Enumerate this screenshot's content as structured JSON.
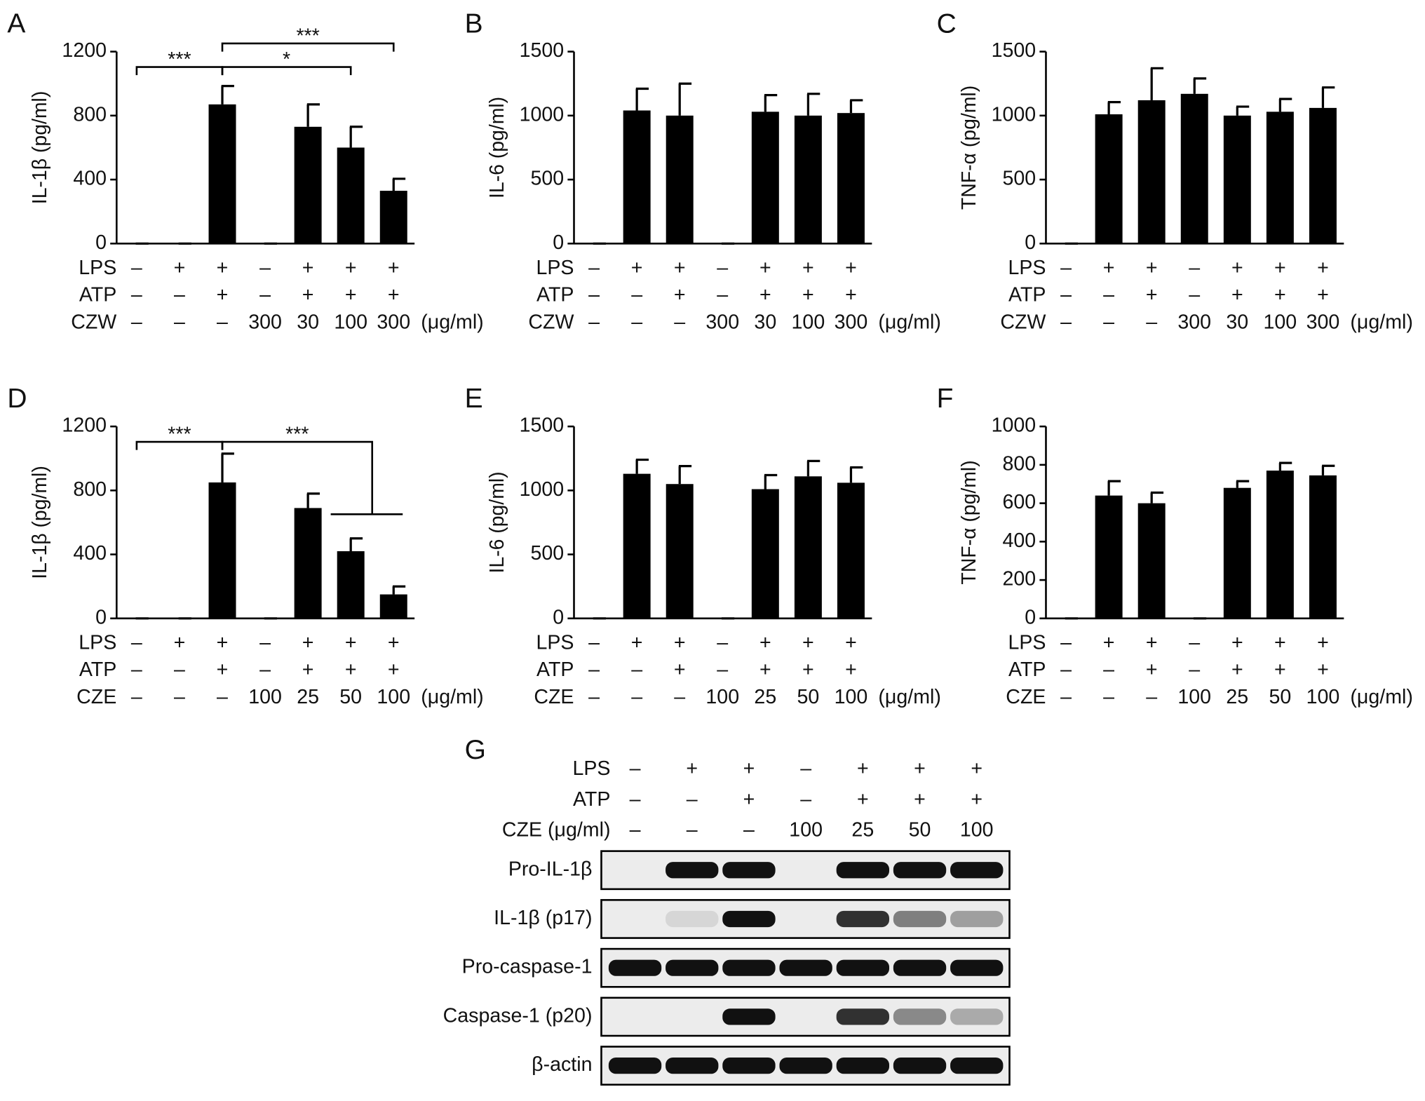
{
  "chart_data": [
    {
      "type": "bar",
      "panel": "A",
      "ylabel": "IL-1β (pg/ml)",
      "color": "#000000",
      "values": [
        0,
        0,
        870,
        0,
        730,
        600,
        330
      ],
      "errors": [
        0,
        0,
        115,
        0,
        140,
        130,
        75
      ],
      "ylim": [
        0,
        1200
      ],
      "yticks": [
        0,
        400,
        800,
        1200
      ],
      "treatments": [
        {
          "name": "LPS",
          "labels": [
            "–",
            "+",
            "+",
            "–",
            "+",
            "+",
            "+"
          ]
        },
        {
          "name": "ATP",
          "labels": [
            "–",
            "–",
            "+",
            "–",
            "+",
            "+",
            "+"
          ]
        },
        {
          "name": "CZW",
          "labels": [
            "–",
            "–",
            "–",
            "300",
            "30",
            "100",
            "300"
          ]
        }
      ],
      "unit": "(μg/ml)",
      "annotations": [
        {
          "text": "***",
          "between": [
            0,
            2
          ]
        },
        {
          "text": "*",
          "between": [
            2,
            5
          ]
        },
        {
          "text": "***",
          "between": [
            2,
            6
          ]
        }
      ]
    },
    {
      "type": "bar",
      "panel": "B",
      "ylabel": "IL-6 (pg/ml)",
      "color": "#000000",
      "values": [
        0,
        1040,
        1000,
        0,
        1030,
        1000,
        1020
      ],
      "errors": [
        0,
        170,
        250,
        0,
        130,
        170,
        100
      ],
      "ylim": [
        0,
        1500
      ],
      "yticks": [
        0,
        500,
        1000,
        1500
      ],
      "treatments": [
        {
          "name": "LPS",
          "labels": [
            "–",
            "+",
            "+",
            "–",
            "+",
            "+",
            "+"
          ]
        },
        {
          "name": "ATP",
          "labels": [
            "–",
            "–",
            "+",
            "–",
            "+",
            "+",
            "+"
          ]
        },
        {
          "name": "CZW",
          "labels": [
            "–",
            "–",
            "–",
            "300",
            "30",
            "100",
            "300"
          ]
        }
      ],
      "unit": "(μg/ml)",
      "annotations": []
    },
    {
      "type": "bar",
      "panel": "C",
      "ylabel": "TNF-α (pg/ml)",
      "color": "#000000",
      "values": [
        0,
        1010,
        1120,
        1170,
        1000,
        1030,
        1060
      ],
      "errors": [
        0,
        95,
        250,
        120,
        70,
        100,
        160
      ],
      "ylim": [
        0,
        1500
      ],
      "yticks": [
        0,
        500,
        1000,
        1500
      ],
      "treatments": [
        {
          "name": "LPS",
          "labels": [
            "–",
            "+",
            "+",
            "–",
            "+",
            "+",
            "+"
          ]
        },
        {
          "name": "ATP",
          "labels": [
            "–",
            "–",
            "+",
            "–",
            "+",
            "+",
            "+"
          ]
        },
        {
          "name": "CZW",
          "labels": [
            "–",
            "–",
            "–",
            "300",
            "30",
            "100",
            "300"
          ]
        }
      ],
      "unit": "(μg/ml)",
      "annotations": []
    },
    {
      "type": "bar",
      "panel": "D",
      "ylabel": "IL-1β (pg/ml)",
      "color": "#000000",
      "values": [
        0,
        0,
        850,
        0,
        690,
        420,
        150
      ],
      "errors": [
        0,
        0,
        180,
        0,
        90,
        80,
        50
      ],
      "ylim": [
        0,
        1200
      ],
      "yticks": [
        0,
        400,
        800,
        1200
      ],
      "treatments": [
        {
          "name": "LPS",
          "labels": [
            "–",
            "+",
            "+",
            "–",
            "+",
            "+",
            "+"
          ]
        },
        {
          "name": "ATP",
          "labels": [
            "–",
            "–",
            "+",
            "–",
            "+",
            "+",
            "+"
          ]
        },
        {
          "name": "CZE",
          "labels": [
            "–",
            "–",
            "–",
            "100",
            "25",
            "50",
            "100"
          ]
        }
      ],
      "unit": "(μg/ml)",
      "annotations": [
        {
          "text": "***",
          "between": [
            0,
            2
          ]
        },
        {
          "text": "***",
          "between": [
            2,
            [
              5,
              6
            ]
          ]
        }
      ]
    },
    {
      "type": "bar",
      "panel": "E",
      "ylabel": "IL-6 (pg/ml)",
      "color": "#000000",
      "values": [
        0,
        1130,
        1050,
        0,
        1010,
        1110,
        1060
      ],
      "errors": [
        0,
        110,
        140,
        0,
        110,
        120,
        120
      ],
      "ylim": [
        0,
        1500
      ],
      "yticks": [
        0,
        500,
        1000,
        1500
      ],
      "treatments": [
        {
          "name": "LPS",
          "labels": [
            "–",
            "+",
            "+",
            "–",
            "+",
            "+",
            "+"
          ]
        },
        {
          "name": "ATP",
          "labels": [
            "–",
            "–",
            "+",
            "–",
            "+",
            "+",
            "+"
          ]
        },
        {
          "name": "CZE",
          "labels": [
            "–",
            "–",
            "–",
            "100",
            "25",
            "50",
            "100"
          ]
        }
      ],
      "unit": "(μg/ml)",
      "annotations": []
    },
    {
      "type": "bar",
      "panel": "F",
      "ylabel": "TNF-α (pg/ml)",
      "color": "#000000",
      "values": [
        0,
        640,
        600,
        0,
        680,
        770,
        745
      ],
      "errors": [
        0,
        75,
        55,
        0,
        35,
        40,
        50
      ],
      "ylim": [
        0,
        1000
      ],
      "yticks": [
        0,
        200,
        400,
        600,
        800,
        1000
      ],
      "treatments": [
        {
          "name": "LPS",
          "labels": [
            "–",
            "+",
            "+",
            "–",
            "+",
            "+",
            "+"
          ]
        },
        {
          "name": "ATP",
          "labels": [
            "–",
            "–",
            "+",
            "–",
            "+",
            "+",
            "+"
          ]
        },
        {
          "name": "CZE",
          "labels": [
            "–",
            "–",
            "–",
            "100",
            "25",
            "50",
            "100"
          ]
        }
      ],
      "unit": "(μg/ml)",
      "annotations": []
    }
  ],
  "blot": {
    "panel": "G",
    "treatments": [
      {
        "name": "LPS",
        "labels": [
          "–",
          "+",
          "+",
          "–",
          "+",
          "+",
          "+"
        ]
      },
      {
        "name": "ATP",
        "labels": [
          "–",
          "–",
          "+",
          "–",
          "+",
          "+",
          "+"
        ]
      },
      {
        "name": "CZE (μg/ml)",
        "labels": [
          "–",
          "–",
          "–",
          "100",
          "25",
          "50",
          "100"
        ]
      }
    ],
    "rows": [
      {
        "name": "Pro-IL-1β",
        "band_intensity": [
          0,
          1,
          1,
          0,
          1,
          1,
          1
        ]
      },
      {
        "name": "IL-1β (p17)",
        "band_intensity": [
          0,
          0.1,
          1,
          0,
          0.85,
          0.5,
          0.35
        ]
      },
      {
        "name": "Pro-caspase-1",
        "band_intensity": [
          1,
          1,
          1,
          1,
          1,
          1,
          1
        ]
      },
      {
        "name": "Caspase-1 (p20)",
        "band_intensity": [
          0,
          0,
          1,
          0,
          0.85,
          0.45,
          0.3
        ]
      },
      {
        "name": "β-actin",
        "band_intensity": [
          1,
          1,
          1,
          1,
          1,
          1,
          1
        ]
      }
    ]
  }
}
